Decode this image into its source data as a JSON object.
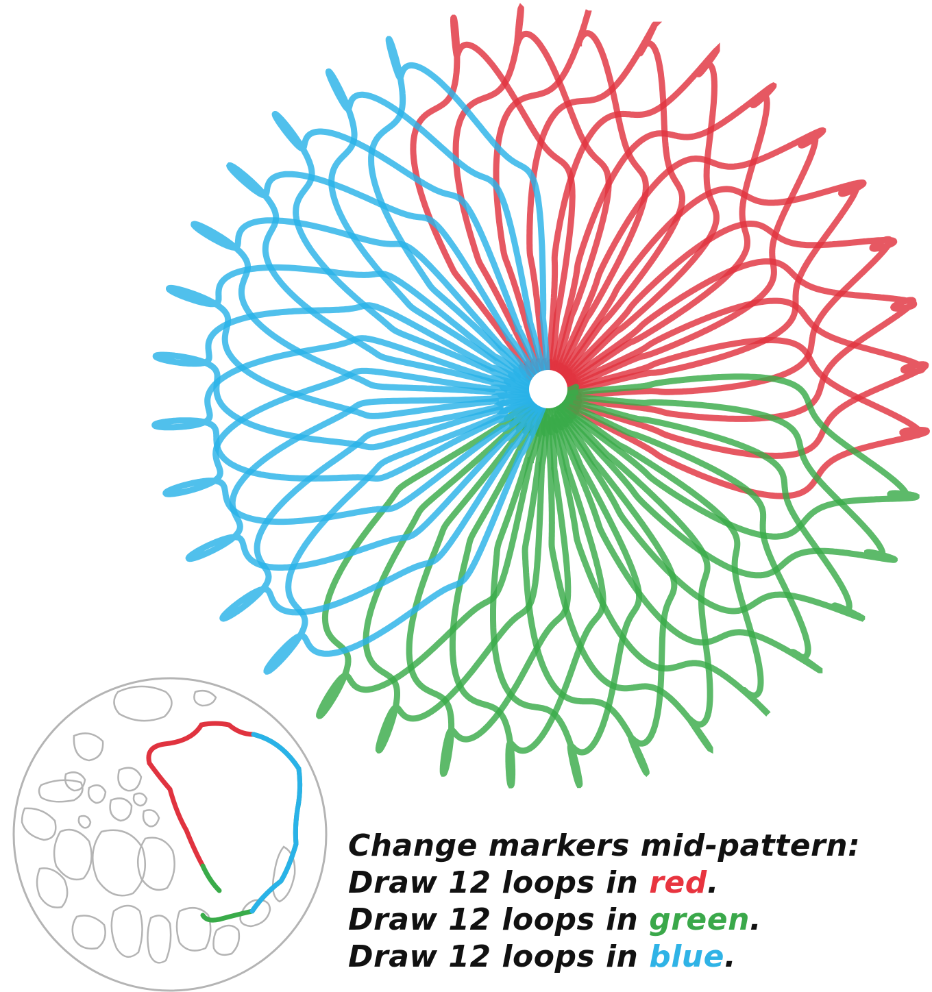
{
  "colors": {
    "red": "#e0333f",
    "green": "#39ab49",
    "blue": "#29b2e8",
    "outline": "#b4b4b4",
    "text": "#111111"
  },
  "caption": {
    "heading": "Change markers mid-pattern:",
    "step_prefix": "Draw 12 loops in ",
    "steps": [
      {
        "color_word": "red"
      },
      {
        "color_word": "green"
      },
      {
        "color_word": "blue"
      }
    ],
    "period": "."
  },
  "pattern": {
    "loops_per_color": 12,
    "color_order": [
      "red",
      "green",
      "blue"
    ]
  }
}
